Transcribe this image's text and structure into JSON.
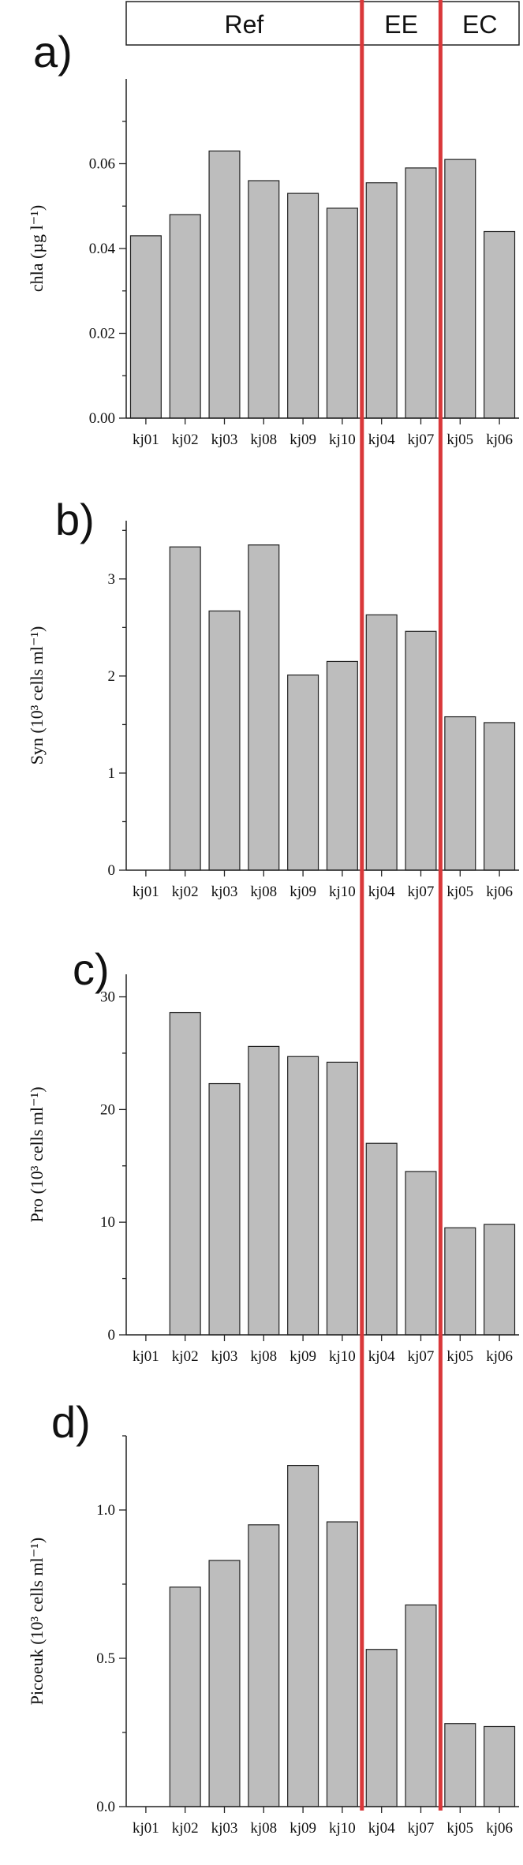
{
  "groups": [
    {
      "label": "Ref",
      "span": [
        0,
        5
      ]
    },
    {
      "label": "EE",
      "span": [
        6,
        7
      ]
    },
    {
      "label": "EC",
      "span": [
        8,
        9
      ]
    }
  ],
  "colors": {
    "bar_fill": "#bdbdbd",
    "separator": "#d9383a",
    "axis": "#222222"
  },
  "chart_data": [
    {
      "type": "bar",
      "panel": "a)",
      "title": "",
      "categories": [
        "kj01",
        "kj02",
        "kj03",
        "kj08",
        "kj09",
        "kj10",
        "kj04",
        "kj07",
        "kj05",
        "kj06"
      ],
      "values": [
        0.043,
        0.048,
        0.063,
        0.056,
        0.053,
        0.0495,
        0.0555,
        0.059,
        0.061,
        0.044
      ],
      "ylabel": "chla (µg l⁻¹)",
      "ylim": [
        0,
        0.08
      ],
      "yticks": [
        0,
        0.02,
        0.04,
        0.06
      ],
      "ytick_labels": [
        "0.00",
        "0.02",
        "0.04",
        "0.06"
      ]
    },
    {
      "type": "bar",
      "panel": "b)",
      "title": "",
      "categories": [
        "kj01",
        "kj02",
        "kj03",
        "kj08",
        "kj09",
        "kj10",
        "kj04",
        "kj07",
        "kj05",
        "kj06"
      ],
      "values": [
        0,
        3.33,
        2.67,
        3.35,
        2.01,
        2.15,
        2.63,
        2.46,
        1.58,
        1.52
      ],
      "ylabel": "Syn (10³ cells ml⁻¹)",
      "ylim": [
        0,
        3.6
      ],
      "yticks": [
        0,
        1,
        2,
        3
      ],
      "ytick_labels": [
        "0",
        "1",
        "2",
        "3"
      ]
    },
    {
      "type": "bar",
      "panel": "c)",
      "title": "",
      "categories": [
        "kj01",
        "kj02",
        "kj03",
        "kj08",
        "kj09",
        "kj10",
        "kj04",
        "kj07",
        "kj05",
        "kj06"
      ],
      "values": [
        0,
        28.6,
        22.3,
        25.6,
        24.7,
        24.2,
        17.0,
        14.5,
        9.5,
        9.8
      ],
      "ylabel": "Pro (10³ cells ml⁻¹)",
      "ylim": [
        0,
        32
      ],
      "yticks": [
        0,
        10,
        20,
        30
      ],
      "ytick_labels": [
        "0",
        "10",
        "20",
        "30"
      ]
    },
    {
      "type": "bar",
      "panel": "d)",
      "title": "",
      "categories": [
        "kj01",
        "kj02",
        "kj03",
        "kj08",
        "kj09",
        "kj10",
        "kj04",
        "kj07",
        "kj05",
        "kj06"
      ],
      "values": [
        0,
        0.74,
        0.83,
        0.95,
        1.15,
        0.96,
        0.53,
        0.68,
        0.28,
        0.27
      ],
      "ylabel": "Picoeuk (10³ cells ml⁻¹)",
      "ylim": [
        0,
        1.25
      ],
      "yticks": [
        0,
        0.5,
        1.0
      ],
      "ytick_labels": [
        "0.0",
        "0.5",
        "1.0"
      ]
    }
  ]
}
